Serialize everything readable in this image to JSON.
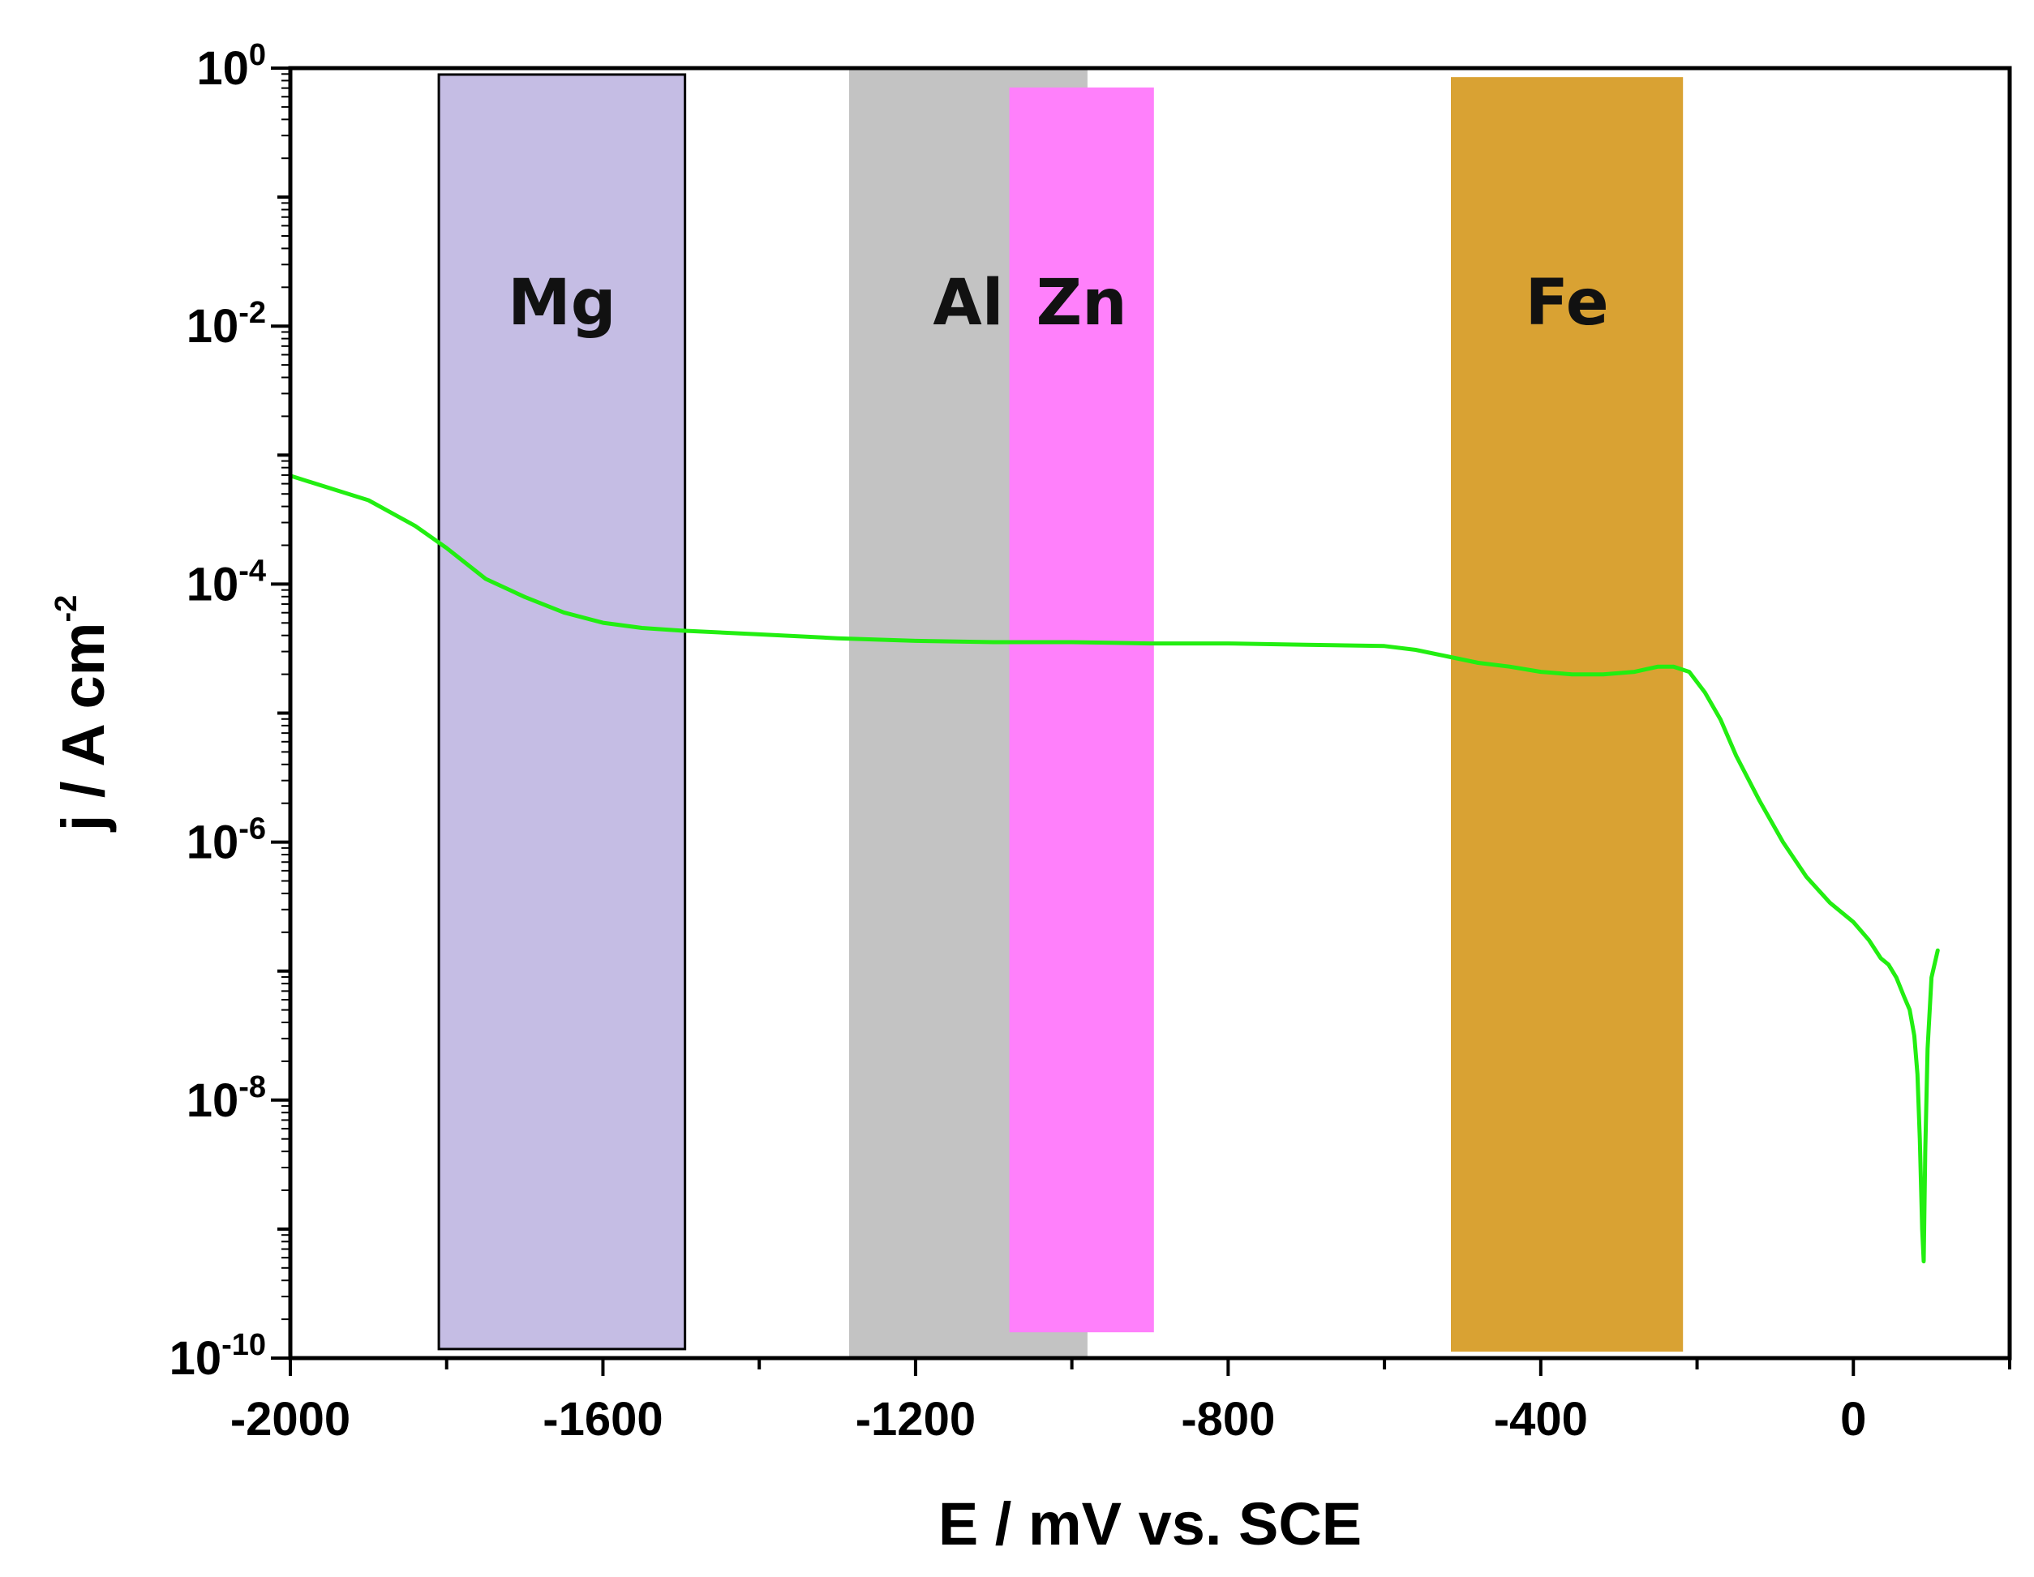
{
  "chart_data": {
    "type": "line",
    "xlabel": "E / mV vs. SCE",
    "ylabel": {
      "base": "j / A cm",
      "sup": "-2"
    },
    "xlim": [
      -2000,
      200
    ],
    "ylim_exp": [
      -10,
      0
    ],
    "y_scale": "log",
    "x_ticks": [
      {
        "value": -2000,
        "label": "-2000"
      },
      {
        "value": -1600,
        "label": "-1600"
      },
      {
        "value": -1200,
        "label": "-1200"
      },
      {
        "value": -800,
        "label": "-800"
      },
      {
        "value": -400,
        "label": "-400"
      },
      {
        "value": 0,
        "label": "0"
      }
    ],
    "y_ticks": [
      {
        "exp": 0,
        "base": "10",
        "sup": "0"
      },
      {
        "exp": -2,
        "base": "10",
        "sup": "-2"
      },
      {
        "exp": -4,
        "base": "10",
        "sup": "-4"
      },
      {
        "exp": -6,
        "base": "10",
        "sup": "-6"
      },
      {
        "exp": -8,
        "base": "10",
        "sup": "-8"
      },
      {
        "exp": -10,
        "base": "10",
        "sup": "-10"
      }
    ],
    "regions": [
      {
        "label": "Mg",
        "x_range": [
          -1810,
          -1495
        ],
        "log_y_range": [
          -9.93,
          -0.05
        ],
        "color": "#c5bde4",
        "outlined": true
      },
      {
        "label": "Al",
        "x_range": [
          -1285,
          -980
        ],
        "log_y_range": [
          -10,
          0
        ],
        "color": "#c3c3c3",
        "outlined": false
      },
      {
        "label": "Zn",
        "x_range": [
          -1080,
          -895
        ],
        "log_y_range": [
          -9.8,
          -0.15
        ],
        "color": "#ff80fb",
        "outlined": false
      },
      {
        "label": "Fe",
        "x_range": [
          -515,
          -218
        ],
        "log_y_range": [
          -9.95,
          -0.07
        ],
        "color": "#d9a233",
        "outlined": false
      }
    ],
    "series": [
      {
        "name": "polarization curve",
        "color": "#22ee11",
        "points": [
          [
            -2000,
            -3.16
          ],
          [
            -1900,
            -3.35
          ],
          [
            -1840,
            -3.55
          ],
          [
            -1800,
            -3.72
          ],
          [
            -1750,
            -3.96
          ],
          [
            -1700,
            -4.1
          ],
          [
            -1650,
            -4.22
          ],
          [
            -1600,
            -4.3
          ],
          [
            -1550,
            -4.34
          ],
          [
            -1500,
            -4.36
          ],
          [
            -1400,
            -4.39
          ],
          [
            -1300,
            -4.42
          ],
          [
            -1200,
            -4.44
          ],
          [
            -1100,
            -4.45
          ],
          [
            -1000,
            -4.45
          ],
          [
            -900,
            -4.46
          ],
          [
            -800,
            -4.46
          ],
          [
            -700,
            -4.47
          ],
          [
            -600,
            -4.48
          ],
          [
            -560,
            -4.51
          ],
          [
            -520,
            -4.56
          ],
          [
            -480,
            -4.61
          ],
          [
            -440,
            -4.64
          ],
          [
            -400,
            -4.68
          ],
          [
            -360,
            -4.7
          ],
          [
            -320,
            -4.7
          ],
          [
            -280,
            -4.68
          ],
          [
            -250,
            -4.64
          ],
          [
            -230,
            -4.64
          ],
          [
            -210,
            -4.68
          ],
          [
            -190,
            -4.84
          ],
          [
            -170,
            -5.05
          ],
          [
            -150,
            -5.33
          ],
          [
            -120,
            -5.68
          ],
          [
            -90,
            -6.0
          ],
          [
            -60,
            -6.27
          ],
          [
            -30,
            -6.47
          ],
          [
            0,
            -6.62
          ],
          [
            20,
            -6.76
          ],
          [
            35,
            -6.9
          ],
          [
            45,
            -6.95
          ],
          [
            55,
            -7.05
          ],
          [
            65,
            -7.2
          ],
          [
            72,
            -7.3
          ],
          [
            78,
            -7.5
          ],
          [
            82,
            -7.8
          ],
          [
            85,
            -8.3
          ],
          [
            88,
            -9.0
          ],
          [
            90,
            -9.25
          ],
          [
            92,
            -8.4
          ],
          [
            95,
            -7.6
          ],
          [
            100,
            -7.05
          ],
          [
            108,
            -6.84
          ]
        ]
      }
    ]
  }
}
